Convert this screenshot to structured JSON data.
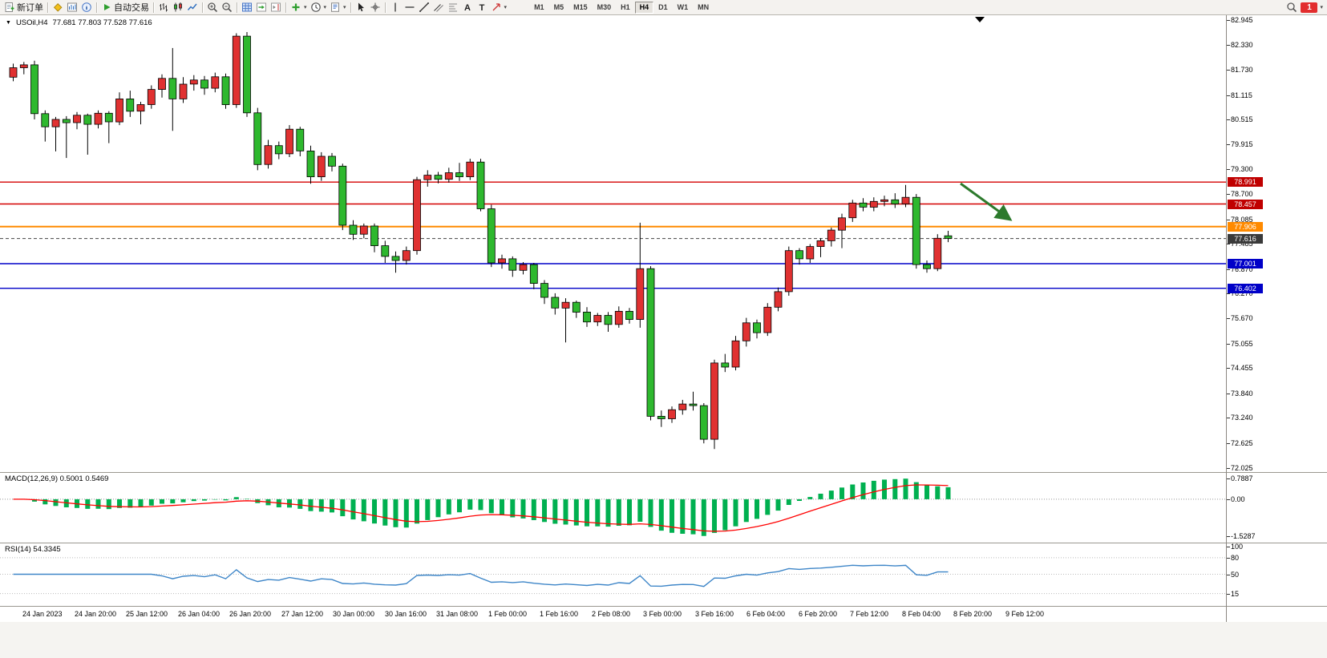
{
  "toolbar": {
    "new_order_label": "新订单",
    "autotrading_label": "自动交易",
    "timeframes": [
      "M1",
      "M5",
      "M15",
      "M30",
      "H1",
      "H4",
      "D1",
      "W1",
      "MN"
    ],
    "active_timeframe": "H4",
    "notification_count": "1"
  },
  "chart_header": {
    "collapse_icon": "▼",
    "title": "USOil,H4",
    "ohlc": "77.681 77.803 77.528 77.616"
  },
  "chart_data": {
    "type": "candlestick",
    "symbol": "USOil",
    "timeframe": "H4",
    "current_ohlc": {
      "open": 77.681,
      "high": 77.803,
      "low": 77.528,
      "close": 77.616
    },
    "price_range": [
      71.92,
      83.06
    ],
    "colors": {
      "bull": "#e03131",
      "bear": "#2eb82e",
      "wick": "#000000",
      "macd_hist": "#00b050",
      "macd_signal": "#ff0000",
      "rsi_line": "#3e86c8"
    },
    "y_tick_labels": [
      "82.945",
      "82.330",
      "81.730",
      "81.115",
      "80.515",
      "79.915",
      "79.300",
      "78.700",
      "78.085",
      "77.485",
      "76.870",
      "76.270",
      "75.670",
      "75.055",
      "74.455",
      "73.840",
      "73.240",
      "72.625",
      "72.025"
    ],
    "x_tick_labels": [
      "24 Jan 2023",
      "24 Jan 20:00",
      "25 Jan 12:00",
      "26 Jan 04:00",
      "26 Jan 20:00",
      "27 Jan 12:00",
      "30 Jan 00:00",
      "30 Jan 16:00",
      "31 Jan 08:00",
      "1 Feb 00:00",
      "1 Feb 16:00",
      "2 Feb 08:00",
      "3 Feb 00:00",
      "3 Feb 16:00",
      "6 Feb 04:00",
      "6 Feb 20:00",
      "7 Feb 12:00",
      "8 Feb 04:00",
      "8 Feb 20:00",
      "9 Feb 12:00"
    ],
    "horizontal_lines": [
      {
        "price": 78.991,
        "color": "#d40000",
        "width": 1.4,
        "dash": ""
      },
      {
        "price": 78.457,
        "color": "#d40000",
        "width": 1.4,
        "dash": ""
      },
      {
        "price": 77.906,
        "color": "#ff8a00",
        "width": 2,
        "dash": ""
      },
      {
        "price": 77.616,
        "color": "#444444",
        "width": 1,
        "dash": "4 3"
      },
      {
        "price": 77.001,
        "color": "#0000c8",
        "width": 1.4,
        "dash": ""
      },
      {
        "price": 76.402,
        "color": "#0000c8",
        "width": 1.4,
        "dash": ""
      }
    ],
    "price_badges": [
      {
        "text": "78.991",
        "color": "#c00000"
      },
      {
        "text": "78.457",
        "color": "#c00000"
      },
      {
        "text": "77.906",
        "color": "#ff8a00"
      },
      {
        "text": "77.616",
        "color": "#3a3a3a"
      },
      {
        "text": "77.001",
        "color": "#0000c8"
      },
      {
        "text": "76.402",
        "color": "#0000c8"
      }
    ],
    "candles": [
      [
        81.55,
        81.88,
        81.45,
        81.78
      ],
      [
        81.78,
        81.92,
        81.62,
        81.85
      ],
      [
        81.85,
        81.95,
        80.52,
        80.66
      ],
      [
        80.66,
        80.74,
        79.98,
        80.34
      ],
      [
        80.34,
        80.58,
        79.74,
        80.52
      ],
      [
        80.52,
        80.6,
        79.58,
        80.44
      ],
      [
        80.44,
        80.7,
        80.28,
        80.62
      ],
      [
        80.62,
        80.66,
        79.66,
        80.4
      ],
      [
        80.4,
        80.74,
        80.3,
        80.67
      ],
      [
        80.67,
        80.72,
        79.94,
        80.46
      ],
      [
        80.46,
        81.18,
        80.38,
        81.02
      ],
      [
        81.02,
        81.22,
        80.58,
        80.72
      ],
      [
        80.72,
        80.95,
        80.4,
        80.88
      ],
      [
        80.88,
        81.35,
        80.78,
        81.25
      ],
      [
        81.25,
        81.62,
        81.05,
        81.52
      ],
      [
        81.52,
        82.26,
        80.24,
        81.02
      ],
      [
        81.02,
        81.55,
        80.92,
        81.38
      ],
      [
        81.38,
        81.6,
        81.22,
        81.48
      ],
      [
        81.48,
        81.58,
        81.12,
        81.28
      ],
      [
        81.28,
        81.66,
        81.18,
        81.56
      ],
      [
        81.56,
        81.64,
        80.78,
        80.88
      ],
      [
        80.88,
        82.62,
        80.8,
        82.55
      ],
      [
        82.55,
        82.65,
        80.58,
        80.68
      ],
      [
        80.68,
        80.8,
        79.28,
        79.42
      ],
      [
        79.42,
        80.02,
        79.32,
        79.88
      ],
      [
        79.88,
        79.98,
        79.55,
        79.68
      ],
      [
        79.68,
        80.38,
        79.6,
        80.28
      ],
      [
        80.28,
        80.34,
        79.62,
        79.75
      ],
      [
        79.75,
        79.88,
        78.95,
        79.12
      ],
      [
        79.12,
        79.72,
        79.02,
        79.62
      ],
      [
        79.62,
        79.7,
        79.25,
        79.38
      ],
      [
        79.38,
        79.44,
        77.82,
        77.94
      ],
      [
        77.94,
        78.06,
        77.58,
        77.72
      ],
      [
        77.72,
        77.98,
        77.62,
        77.92
      ],
      [
        77.92,
        77.98,
        77.28,
        77.44
      ],
      [
        77.44,
        77.56,
        77.02,
        77.18
      ],
      [
        77.18,
        77.3,
        76.78,
        77.08
      ],
      [
        77.08,
        77.42,
        76.98,
        77.32
      ],
      [
        77.32,
        79.12,
        77.22,
        79.05
      ],
      [
        79.05,
        79.28,
        78.88,
        79.16
      ],
      [
        79.16,
        79.24,
        78.96,
        79.06
      ],
      [
        79.06,
        79.34,
        78.98,
        79.22
      ],
      [
        79.22,
        79.46,
        79.02,
        79.12
      ],
      [
        79.12,
        79.56,
        79.04,
        79.48
      ],
      [
        79.48,
        79.56,
        78.28,
        78.34
      ],
      [
        78.34,
        78.44,
        76.92,
        77.02
      ],
      [
        77.02,
        77.22,
        76.88,
        77.12
      ],
      [
        77.12,
        77.18,
        76.68,
        76.84
      ],
      [
        76.84,
        77.04,
        76.74,
        76.98
      ],
      [
        76.98,
        77.02,
        76.38,
        76.52
      ],
      [
        76.52,
        76.6,
        76.02,
        76.18
      ],
      [
        76.18,
        76.28,
        75.76,
        75.92
      ],
      [
        75.92,
        76.16,
        75.08,
        76.06
      ],
      [
        76.06,
        76.1,
        75.68,
        75.82
      ],
      [
        75.82,
        75.94,
        75.46,
        75.58
      ],
      [
        75.58,
        75.8,
        75.48,
        75.74
      ],
      [
        75.74,
        75.82,
        75.34,
        75.52
      ],
      [
        75.52,
        75.96,
        75.44,
        75.84
      ],
      [
        75.84,
        75.92,
        75.54,
        75.64
      ],
      [
        75.64,
        78.0,
        75.44,
        76.88
      ],
      [
        76.88,
        76.94,
        73.18,
        73.28
      ],
      [
        73.28,
        73.42,
        73.02,
        73.22
      ],
      [
        73.22,
        73.52,
        73.12,
        73.44
      ],
      [
        73.44,
        73.68,
        73.32,
        73.58
      ],
      [
        73.58,
        73.88,
        73.42,
        73.54
      ],
      [
        73.54,
        73.6,
        72.62,
        72.72
      ],
      [
        72.72,
        74.66,
        72.48,
        74.58
      ],
      [
        74.58,
        74.8,
        74.36,
        74.48
      ],
      [
        74.48,
        75.24,
        74.4,
        75.12
      ],
      [
        75.12,
        75.68,
        74.98,
        75.56
      ],
      [
        75.56,
        75.64,
        75.18,
        75.32
      ],
      [
        75.32,
        76.04,
        75.24,
        75.94
      ],
      [
        75.94,
        76.42,
        75.84,
        76.32
      ],
      [
        76.32,
        77.42,
        76.22,
        77.32
      ],
      [
        77.32,
        77.38,
        76.98,
        77.12
      ],
      [
        77.12,
        77.48,
        77.02,
        77.42
      ],
      [
        77.42,
        77.62,
        77.16,
        77.56
      ],
      [
        77.56,
        77.88,
        77.42,
        77.82
      ],
      [
        77.82,
        78.22,
        77.38,
        78.12
      ],
      [
        78.12,
        78.56,
        78.02,
        78.48
      ],
      [
        78.48,
        78.6,
        78.28,
        78.38
      ],
      [
        78.38,
        78.62,
        78.28,
        78.52
      ],
      [
        78.52,
        78.66,
        78.4,
        78.56
      ],
      [
        78.56,
        78.72,
        78.36,
        78.46
      ],
      [
        78.46,
        78.92,
        78.38,
        78.62
      ],
      [
        78.62,
        78.7,
        76.88,
        76.98
      ],
      [
        76.98,
        77.08,
        76.78,
        76.88
      ],
      [
        76.88,
        77.72,
        76.82,
        77.62
      ],
      [
        77.681,
        77.803,
        77.528,
        77.616
      ]
    ]
  },
  "macd_panel": {
    "label": "MACD(12,26,9) 0.5001 0.5469",
    "axis_max": "0.7887",
    "axis_zero": "0.00",
    "axis_min": "-1.5287"
  },
  "rsi_panel": {
    "label": "RSI(14) 54.3345",
    "axis_labels": [
      {
        "value": 100,
        "text": "100"
      },
      {
        "value": 80,
        "text": "80"
      },
      {
        "value": 50,
        "text": "50"
      },
      {
        "value": 15,
        "text": "15"
      }
    ]
  },
  "annotation_arrow": {
    "color": "#2c7a2c",
    "description": "green arrow pointing down-right toward the 77.906 level"
  }
}
